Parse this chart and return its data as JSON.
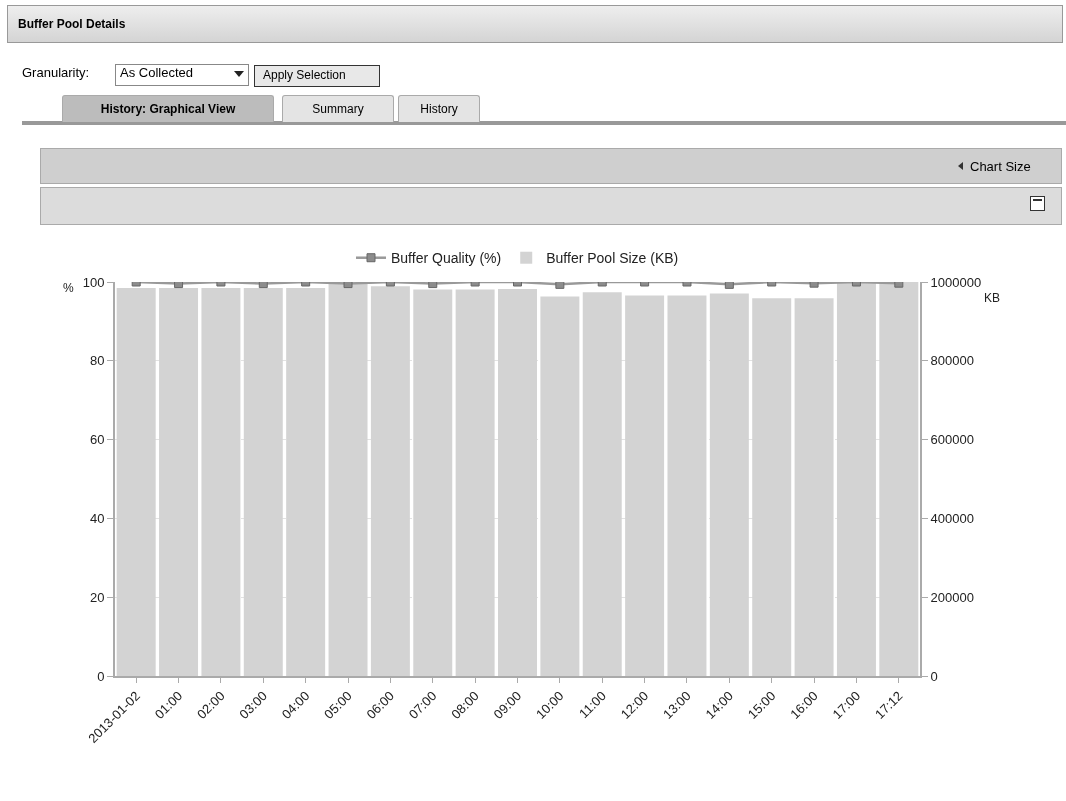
{
  "chart_data": {
    "type": "bar",
    "title": "Buffer Pool Details",
    "annotations": [
      "Granularity:",
      "As Collected",
      "Apply Selection",
      "History: Graphical View",
      "Summary",
      "History",
      "Chart Size"
    ],
    "categories": [
      "2013-01-02",
      "01:00",
      "02:00",
      "03:00",
      "04:00",
      "05:00",
      "06:00",
      "07:00",
      "08:00",
      "09:00",
      "10:00",
      "11:00",
      "12:00",
      "13:00",
      "14:00",
      "15:00",
      "16:00",
      "17:00",
      "17:12"
    ],
    "series": [
      {
        "name": "Buffer Quality (%)",
        "type": "line",
        "color": "#999999",
        "marker": "square",
        "values": [
          100,
          99.6,
          100,
          99.6,
          100,
          99.6,
          100,
          99.6,
          100,
          100,
          99.4,
          100,
          100,
          100,
          99.4,
          100,
          99.7,
          100,
          99.7
        ]
      },
      {
        "name": "Buffer Pool Size (KB)",
        "axis": "y2",
        "color": "#d3d3d3",
        "values": [
          985000,
          985000,
          985000,
          985000,
          985000,
          997000,
          989000,
          981000,
          981000,
          982000,
          963000,
          974000,
          966000,
          966000,
          971000,
          959000,
          959000,
          1000000,
          1000000
        ]
      }
    ],
    "ylabel": "%",
    "y2label": "KB",
    "ylim": [
      0,
      100
    ],
    "yticks": [
      0,
      20,
      40,
      60,
      80,
      100
    ],
    "y2lim": [
      0,
      1000000
    ],
    "y2ticks": [
      0,
      200000,
      400000,
      600000,
      800000,
      1000000
    ],
    "grid": "y",
    "legend": "top"
  }
}
